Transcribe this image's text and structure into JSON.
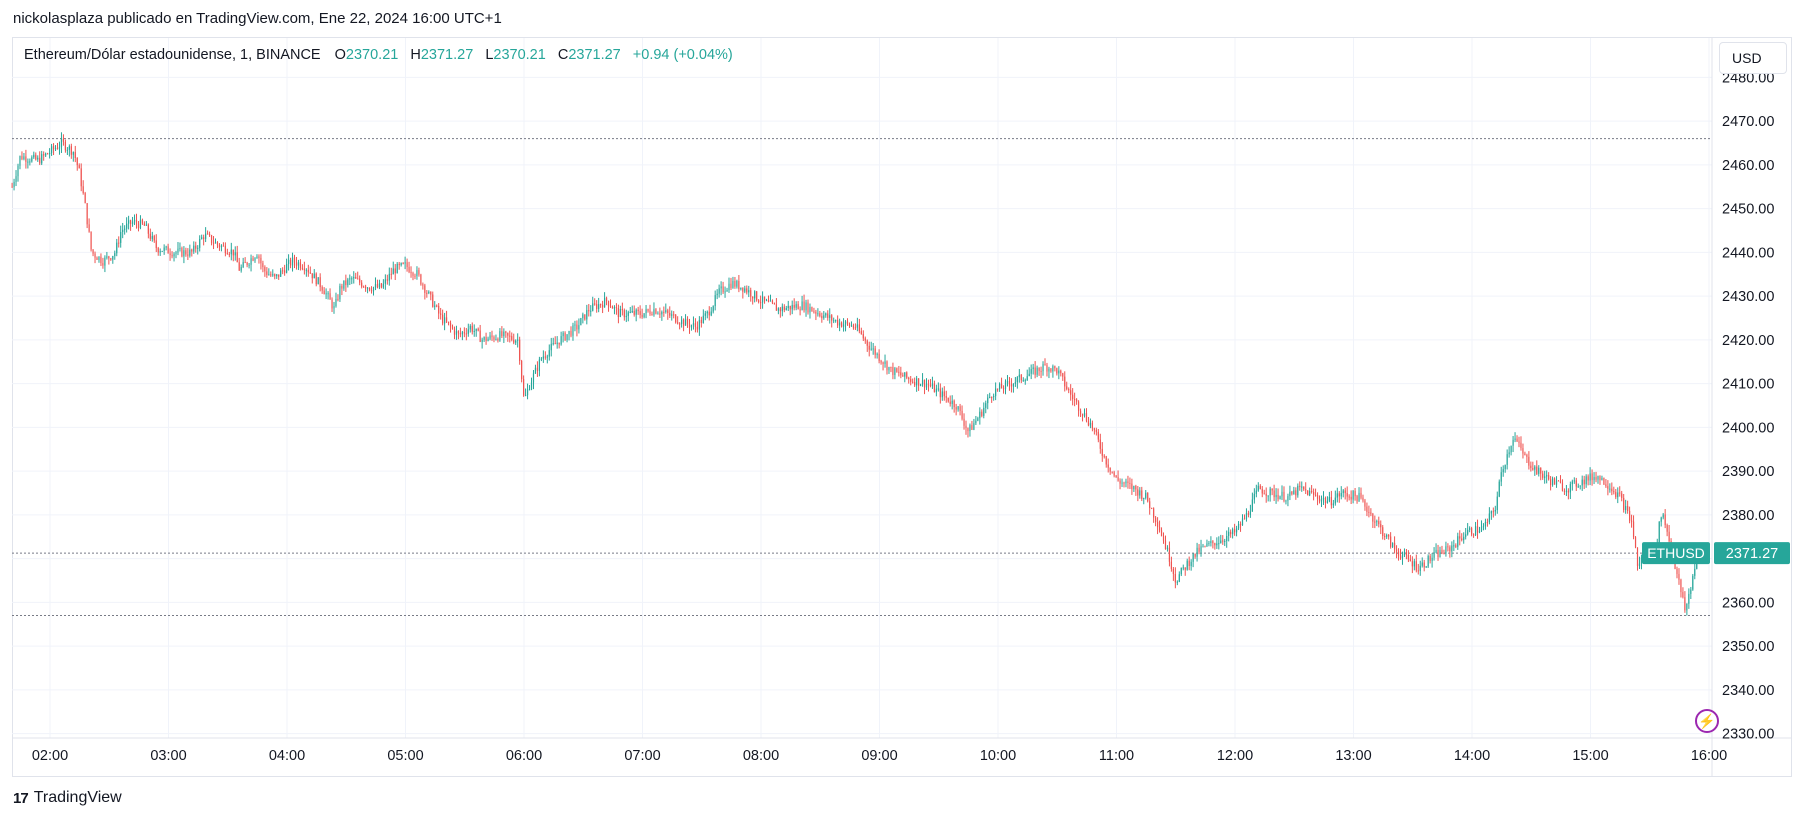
{
  "header": {
    "publisher_line": "nickolasplaza publicado en TradingView.com, Ene 22, 2024 16:00 UTC+1"
  },
  "legend": {
    "symbol": "Ethereum/Dólar estadounidense, 1, BINANCE",
    "o_label": "O",
    "o_value": "2370.21",
    "h_label": "H",
    "h_value": "2371.27",
    "l_label": "L",
    "l_value": "2370.21",
    "c_label": "C",
    "c_value": "2371.27",
    "change": "+0.94 (+0.04%)"
  },
  "currency_button": "USD",
  "footer": {
    "brand": "TradingView",
    "logo_mark": "17"
  },
  "colors": {
    "up": "#26a69a",
    "down": "#ef5350",
    "grid": "#f0f3fa",
    "axis_text": "#131722",
    "dotted": "#787b86",
    "price_tag": "#26a69a"
  },
  "price_tag": {
    "symbol": "ETHUSD",
    "value": "2371.27"
  },
  "icons": {
    "flash": "flash-icon",
    "logo": "tradingview-logo-icon"
  },
  "chart_data": {
    "type": "candlestick",
    "interval": "1",
    "ylim": [
      2329,
      2489
    ],
    "y_ticks": [
      "2330.00",
      "2340.00",
      "2350.00",
      "2360.00",
      "2370.00",
      "2380.00",
      "2390.00",
      "2400.00",
      "2410.00",
      "2420.00",
      "2430.00",
      "2440.00",
      "2450.00",
      "2460.00",
      "2470.00",
      "2480.00"
    ],
    "x_ticks": [
      "02:00",
      "03:00",
      "04:00",
      "05:00",
      "06:00",
      "07:00",
      "08:00",
      "09:00",
      "10:00",
      "11:00",
      "12:00",
      "13:00",
      "14:00",
      "15:00",
      "16:00"
    ],
    "x_range_hours": [
      1.68,
      16.1
    ],
    "horizontal_lines": [
      2466,
      2371.27,
      2357
    ],
    "close_path": [
      [
        1.68,
        2455
      ],
      [
        1.75,
        2462
      ],
      [
        1.9,
        2461
      ],
      [
        2.1,
        2465
      ],
      [
        2.2,
        2463
      ],
      [
        2.25,
        2458
      ],
      [
        2.3,
        2450
      ],
      [
        2.35,
        2440
      ],
      [
        2.45,
        2438
      ],
      [
        2.55,
        2440
      ],
      [
        2.6,
        2445
      ],
      [
        2.7,
        2447
      ],
      [
        2.8,
        2446
      ],
      [
        2.9,
        2441
      ],
      [
        3.05,
        2440
      ],
      [
        3.2,
        2440
      ],
      [
        3.3,
        2444
      ],
      [
        3.4,
        2442
      ],
      [
        3.55,
        2440
      ],
      [
        3.6,
        2436
      ],
      [
        3.75,
        2440
      ],
      [
        3.8,
        2436
      ],
      [
        3.9,
        2434
      ],
      [
        4.0,
        2437
      ],
      [
        4.05,
        2438
      ],
      [
        4.15,
        2437
      ],
      [
        4.3,
        2432
      ],
      [
        4.4,
        2427
      ],
      [
        4.45,
        2432
      ],
      [
        4.55,
        2434
      ],
      [
        4.7,
        2432
      ],
      [
        4.8,
        2432
      ],
      [
        4.9,
        2436
      ],
      [
        5.0,
        2437
      ],
      [
        5.1,
        2435
      ],
      [
        5.2,
        2430
      ],
      [
        5.3,
        2425
      ],
      [
        5.45,
        2421
      ],
      [
        5.55,
        2423
      ],
      [
        5.65,
        2420
      ],
      [
        5.8,
        2421
      ],
      [
        5.95,
        2420
      ],
      [
        6.0,
        2406
      ],
      [
        6.05,
        2410
      ],
      [
        6.15,
        2416
      ],
      [
        6.3,
        2420
      ],
      [
        6.45,
        2423
      ],
      [
        6.55,
        2427
      ],
      [
        6.7,
        2429
      ],
      [
        6.8,
        2426
      ],
      [
        7.0,
        2426
      ],
      [
        7.1,
        2427
      ],
      [
        7.2,
        2426
      ],
      [
        7.35,
        2424
      ],
      [
        7.45,
        2423
      ],
      [
        7.55,
        2426
      ],
      [
        7.65,
        2431
      ],
      [
        7.75,
        2433
      ],
      [
        7.85,
        2432
      ],
      [
        8.0,
        2429
      ],
      [
        8.15,
        2427
      ],
      [
        8.35,
        2428
      ],
      [
        8.5,
        2426
      ],
      [
        8.65,
        2424
      ],
      [
        8.8,
        2423
      ],
      [
        8.9,
        2419
      ],
      [
        9.0,
        2416
      ],
      [
        9.1,
        2413
      ],
      [
        9.25,
        2411
      ],
      [
        9.4,
        2410
      ],
      [
        9.5,
        2408
      ],
      [
        9.65,
        2405
      ],
      [
        9.75,
        2399
      ],
      [
        9.85,
        2403
      ],
      [
        9.95,
        2408
      ],
      [
        10.1,
        2410
      ],
      [
        10.25,
        2412
      ],
      [
        10.4,
        2414
      ],
      [
        10.5,
        2413
      ],
      [
        10.6,
        2408
      ],
      [
        10.7,
        2404
      ],
      [
        10.8,
        2400
      ],
      [
        10.9,
        2393
      ],
      [
        11.0,
        2388
      ],
      [
        11.15,
        2386
      ],
      [
        11.25,
        2384
      ],
      [
        11.35,
        2378
      ],
      [
        11.45,
        2370
      ],
      [
        11.5,
        2365
      ],
      [
        11.6,
        2369
      ],
      [
        11.7,
        2372
      ],
      [
        11.85,
        2374
      ],
      [
        12.0,
        2376
      ],
      [
        12.1,
        2380
      ],
      [
        12.2,
        2386
      ],
      [
        12.3,
        2385
      ],
      [
        12.45,
        2384
      ],
      [
        12.55,
        2386
      ],
      [
        12.7,
        2384
      ],
      [
        12.8,
        2383
      ],
      [
        12.9,
        2385
      ],
      [
        13.05,
        2384
      ],
      [
        13.15,
        2380
      ],
      [
        13.25,
        2376
      ],
      [
        13.35,
        2372
      ],
      [
        13.45,
        2370
      ],
      [
        13.55,
        2368
      ],
      [
        13.7,
        2371
      ],
      [
        13.8,
        2372
      ],
      [
        13.95,
        2376
      ],
      [
        14.1,
        2377
      ],
      [
        14.2,
        2382
      ],
      [
        14.25,
        2390
      ],
      [
        14.35,
        2398
      ],
      [
        14.45,
        2393
      ],
      [
        14.55,
        2390
      ],
      [
        14.65,
        2388
      ],
      [
        14.8,
        2386
      ],
      [
        14.95,
        2388
      ],
      [
        15.05,
        2389
      ],
      [
        15.15,
        2387
      ],
      [
        15.25,
        2384
      ],
      [
        15.35,
        2378
      ],
      [
        15.4,
        2368
      ],
      [
        15.45,
        2371
      ],
      [
        15.55,
        2372
      ],
      [
        15.6,
        2381
      ],
      [
        15.65,
        2376
      ],
      [
        15.7,
        2370
      ],
      [
        15.75,
        2364
      ],
      [
        15.8,
        2358
      ],
      [
        15.85,
        2364
      ],
      [
        15.9,
        2371.27
      ]
    ]
  }
}
